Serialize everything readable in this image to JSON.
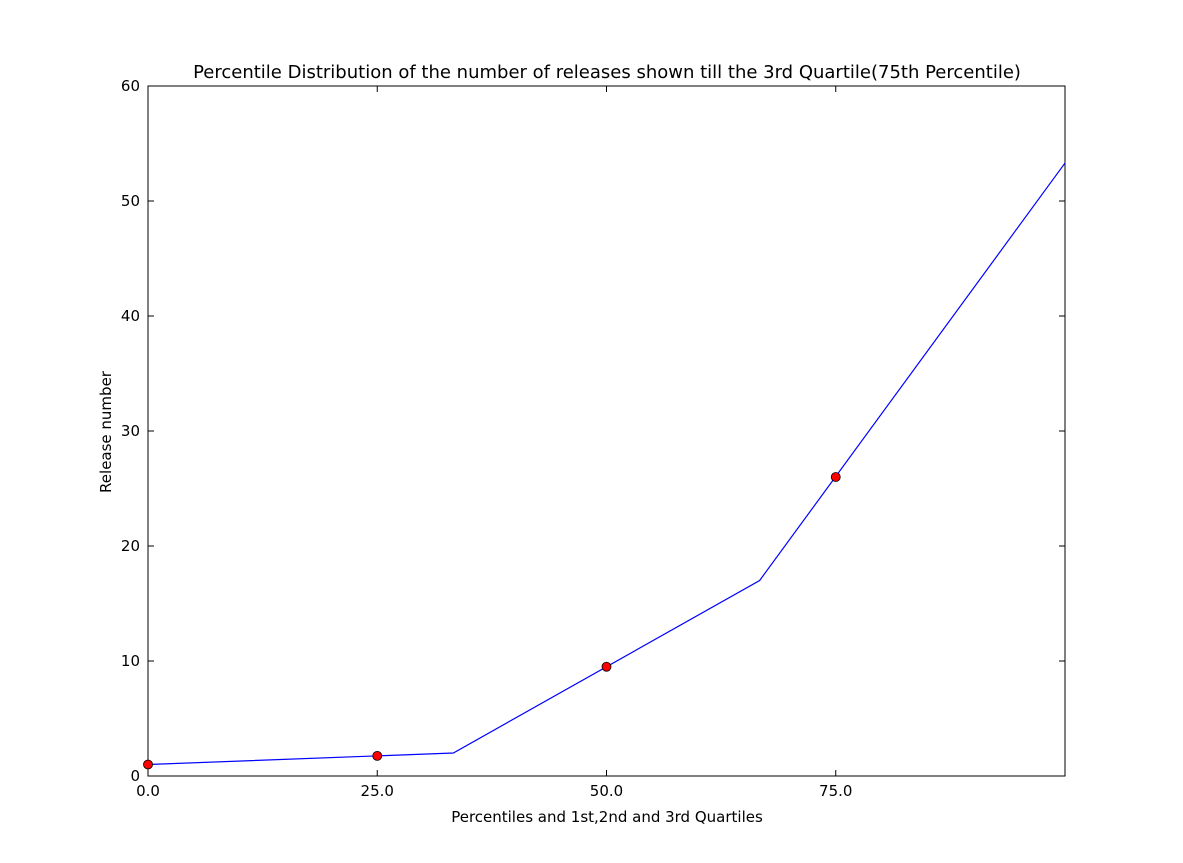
{
  "chart_data": {
    "type": "line",
    "title": "Percentile Distribution of the number of releases shown till the 3rd Quartile(75th Percentile)",
    "xlabel": "Percentiles and 1st,2nd and 3rd Quartiles",
    "ylabel": "Release number",
    "xlim": [
      0,
      100
    ],
    "ylim": [
      0,
      60
    ],
    "xticks": [
      0,
      25,
      50,
      75
    ],
    "xtick_labels": [
      "0.0",
      "25.0",
      "50.0",
      "75.0"
    ],
    "yticks": [
      0,
      10,
      20,
      30,
      40,
      50,
      60
    ],
    "ytick_labels": [
      "0",
      "10",
      "20",
      "30",
      "40",
      "50",
      "60"
    ],
    "grid": false,
    "series": [
      {
        "values_x": [
          0,
          33.3,
          66.7,
          100
        ],
        "values_y": [
          1,
          2,
          17,
          53.3
        ],
        "color": "#0000ff",
        "style": "line"
      },
      {
        "values_x": [
          0,
          25,
          50,
          75
        ],
        "values_y": [
          1,
          1.75,
          9.5,
          26
        ],
        "color": "#ff0000",
        "style": "markers"
      }
    ]
  }
}
